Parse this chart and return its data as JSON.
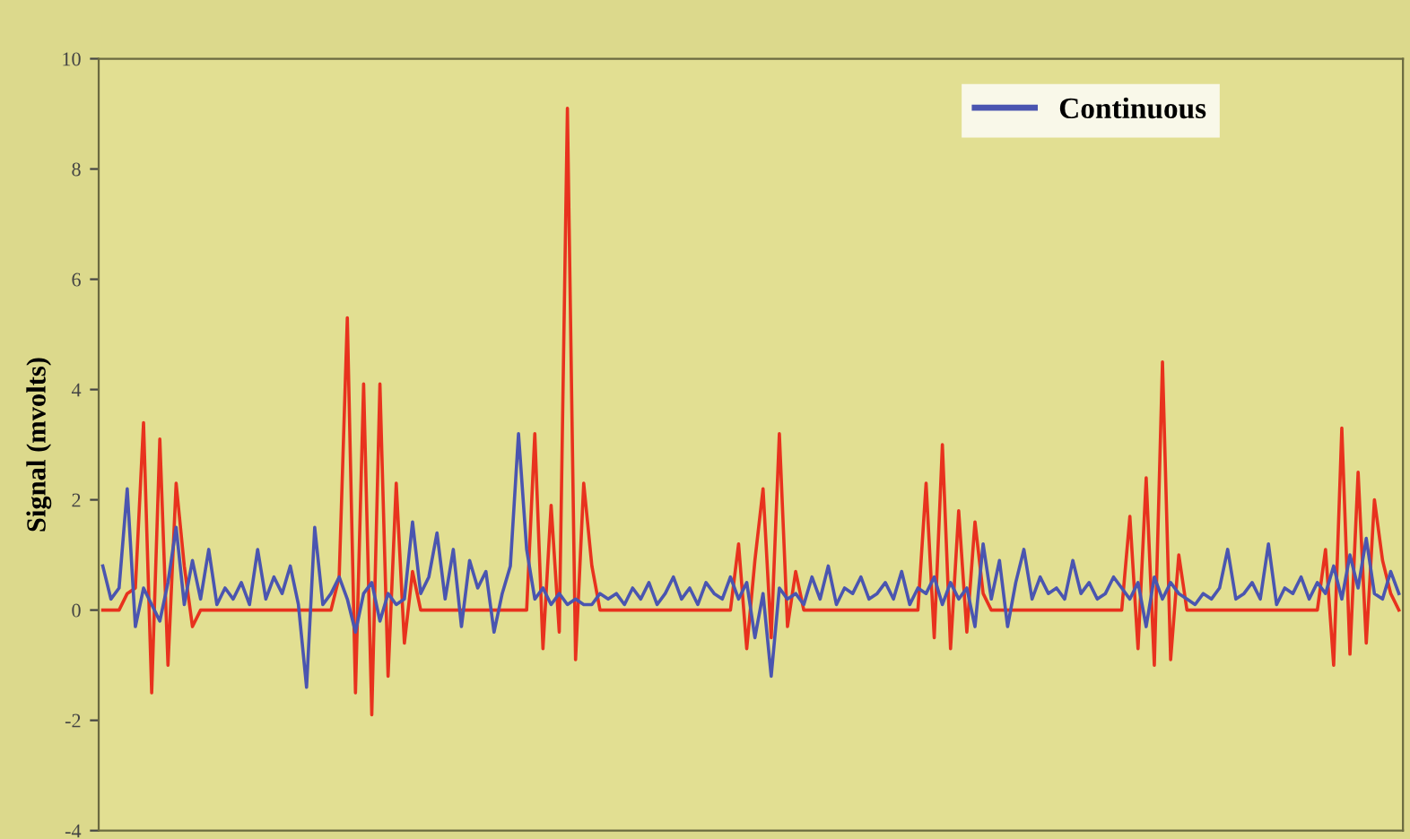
{
  "chart_data": {
    "type": "line",
    "ylabel": "Signal (mvolts)",
    "categories": [
      null,
      null,
      null,
      null,
      null,
      null,
      null,
      null,
      null,
      null,
      null,
      null,
      null,
      null,
      null,
      null,
      null,
      null,
      null,
      null,
      null,
      null,
      null,
      null,
      null,
      null,
      null,
      null,
      null,
      null,
      null,
      null,
      null,
      null,
      null,
      null,
      null,
      null,
      null,
      null,
      null,
      null,
      null,
      null,
      null,
      null,
      null,
      null,
      null,
      null,
      null,
      null,
      null,
      null,
      null,
      null,
      null,
      null,
      null,
      null,
      null,
      null,
      null,
      null,
      null,
      null,
      null,
      null,
      null,
      null,
      null,
      null,
      null,
      null,
      null,
      null,
      null,
      null,
      null,
      null,
      null,
      null,
      null,
      null,
      null,
      null,
      null,
      null,
      null,
      null,
      null,
      null,
      null,
      null,
      null,
      null,
      null,
      null,
      null,
      null,
      null,
      null,
      null,
      null,
      null,
      null,
      null,
      null,
      null,
      null,
      null,
      null,
      null,
      null,
      null,
      null,
      null,
      null,
      null,
      null,
      null,
      null,
      null,
      null,
      null,
      null,
      null,
      null,
      null,
      null,
      null,
      null,
      null,
      null,
      null,
      null,
      null,
      null,
      null,
      null,
      null,
      null,
      null,
      null,
      null,
      null,
      null,
      null,
      null,
      null,
      null,
      null,
      null,
      null,
      null,
      null,
      null,
      null,
      null,
      null
    ],
    "series": [
      {
        "color": "#e8321e",
        "values": [
          0,
          0,
          0,
          0.3,
          0.4,
          3.4,
          -1.5,
          3.1,
          -1.0,
          2.3,
          0.8,
          -0.3,
          0,
          0,
          0,
          0,
          0,
          0,
          0,
          0,
          0,
          0,
          0,
          0,
          0,
          0,
          0,
          0,
          0,
          0.6,
          5.3,
          -1.5,
          4.1,
          -1.9,
          4.1,
          -1.2,
          2.3,
          -0.6,
          0.7,
          0,
          0,
          0,
          0,
          0,
          0,
          0,
          0,
          0,
          0,
          0,
          0,
          0,
          0,
          3.2,
          -0.7,
          1.9,
          -0.4,
          9.1,
          -0.9,
          2.3,
          0.8,
          0,
          0,
          0,
          0,
          0,
          0,
          0,
          0,
          0,
          0,
          0,
          0,
          0,
          0,
          0,
          0,
          0,
          1.2,
          -0.7,
          0.9,
          2.2,
          -0.5,
          3.2,
          -0.3,
          0.7,
          0,
          0,
          0,
          0,
          0,
          0,
          0,
          0,
          0,
          0,
          0,
          0,
          0,
          0,
          0,
          2.3,
          -0.5,
          3.0,
          -0.7,
          1.8,
          -0.4,
          1.6,
          0.3,
          0,
          0,
          0,
          0,
          0,
          0,
          0,
          0,
          0,
          0,
          0,
          0,
          0,
          0,
          0,
          0,
          0,
          1.7,
          -0.7,
          2.4,
          -1.0,
          4.5,
          -0.9,
          1.0,
          0,
          0,
          0,
          0,
          0,
          0,
          0,
          0,
          0,
          0,
          0,
          0,
          0,
          0,
          0,
          0,
          0,
          1.1,
          -1.0,
          3.3,
          -0.8,
          2.5,
          -0.6,
          2.0,
          0.9,
          0.3,
          0
        ]
      },
      {
        "name": "Continuous",
        "color": "#4a55b0",
        "values": [
          0.8,
          0.2,
          0.4,
          2.2,
          -0.3,
          0.4,
          0.1,
          -0.2,
          0.5,
          1.5,
          0.1,
          0.9,
          0.2,
          1.1,
          0.1,
          0.4,
          0.2,
          0.5,
          0.1,
          1.1,
          0.2,
          0.6,
          0.3,
          0.8,
          0.1,
          -1.4,
          1.5,
          0.1,
          0.3,
          0.6,
          0.2,
          -0.4,
          0.3,
          0.5,
          -0.2,
          0.3,
          0.1,
          0.2,
          1.6,
          0.3,
          0.6,
          1.4,
          0.2,
          1.1,
          -0.3,
          0.9,
          0.4,
          0.7,
          -0.4,
          0.3,
          0.8,
          3.2,
          1.1,
          0.2,
          0.4,
          0.1,
          0.3,
          0.1,
          0.2,
          0.1,
          0.1,
          0.3,
          0.2,
          0.3,
          0.1,
          0.4,
          0.2,
          0.5,
          0.1,
          0.3,
          0.6,
          0.2,
          0.4,
          0.1,
          0.5,
          0.3,
          0.2,
          0.6,
          0.2,
          0.5,
          -0.5,
          0.3,
          -1.2,
          0.4,
          0.2,
          0.3,
          0.1,
          0.6,
          0.2,
          0.8,
          0.1,
          0.4,
          0.3,
          0.6,
          0.2,
          0.3,
          0.5,
          0.2,
          0.7,
          0.1,
          0.4,
          0.3,
          0.6,
          0.1,
          0.5,
          0.2,
          0.4,
          -0.3,
          1.2,
          0.2,
          0.9,
          -0.3,
          0.5,
          1.1,
          0.2,
          0.6,
          0.3,
          0.4,
          0.2,
          0.9,
          0.3,
          0.5,
          0.2,
          0.3,
          0.6,
          0.4,
          0.2,
          0.5,
          -0.3,
          0.6,
          0.2,
          0.5,
          0.3,
          0.2,
          0.1,
          0.3,
          0.2,
          0.4,
          1.1,
          0.2,
          0.3,
          0.5,
          0.2,
          1.2,
          0.1,
          0.4,
          0.3,
          0.6,
          0.2,
          0.5,
          0.3,
          0.8,
          0.2,
          1.0,
          0.4,
          1.3,
          0.3,
          0.2,
          0.7,
          0.3
        ]
      }
    ],
    "ylim": [
      -4,
      10
    ],
    "yticks": [
      -4,
      -2,
      0,
      2,
      4,
      6,
      8,
      10
    ],
    "legend": "top right",
    "grid": false,
    "tick_labels": "y"
  }
}
